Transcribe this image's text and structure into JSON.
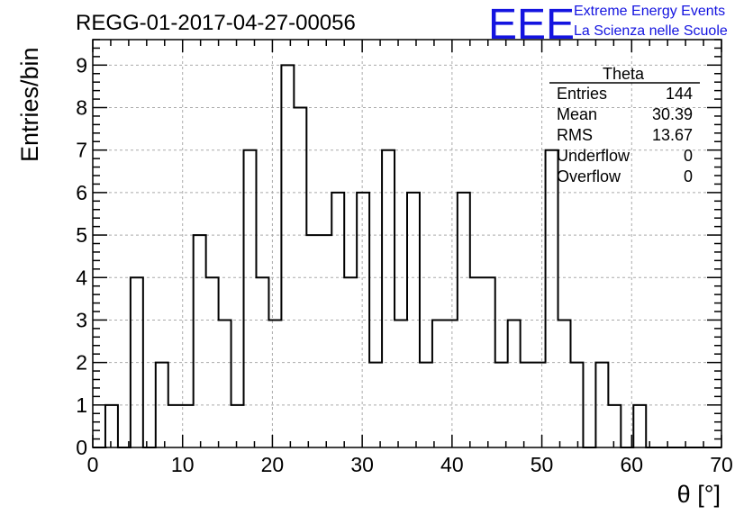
{
  "header": {
    "run_id": "REGG-01-2017-04-27-00056",
    "logo_mark": "EEE",
    "logo_line1": "Extreme Energy Events",
    "logo_line2": "La Scienza nelle Scuole",
    "brand_color": "#1414e0"
  },
  "stats_box": {
    "title": "Theta",
    "rows": [
      {
        "label": "Entries",
        "value": "144"
      },
      {
        "label": "Mean",
        "value": "30.39"
      },
      {
        "label": "RMS",
        "value": "13.67"
      },
      {
        "label": "Underflow",
        "value": "0"
      },
      {
        "label": "Overflow",
        "value": "0"
      }
    ]
  },
  "chart_data": {
    "type": "bar",
    "histogram": true,
    "xlabel": "θ [°]",
    "ylabel": "Entries/bin",
    "xlim": [
      0,
      70
    ],
    "ylim": [
      0,
      9.6
    ],
    "bin_width": 1.4,
    "bin_start": 0,
    "values": [
      0,
      1,
      0,
      4,
      0,
      2,
      1,
      1,
      5,
      4,
      3,
      1,
      7,
      4,
      3,
      9,
      8,
      5,
      5,
      6,
      4,
      6,
      2,
      7,
      3,
      6,
      2,
      3,
      3,
      6,
      4,
      4,
      2,
      3,
      2,
      2,
      7,
      3,
      2,
      0,
      2,
      1,
      0,
      1,
      0,
      0,
      0,
      0,
      0,
      0
    ],
    "x_ticks": [
      0,
      10,
      20,
      30,
      40,
      50,
      60,
      70
    ],
    "y_ticks": [
      0,
      1,
      2,
      3,
      4,
      5,
      6,
      7,
      8,
      9
    ],
    "grid": true,
    "line_color": "#000000"
  }
}
